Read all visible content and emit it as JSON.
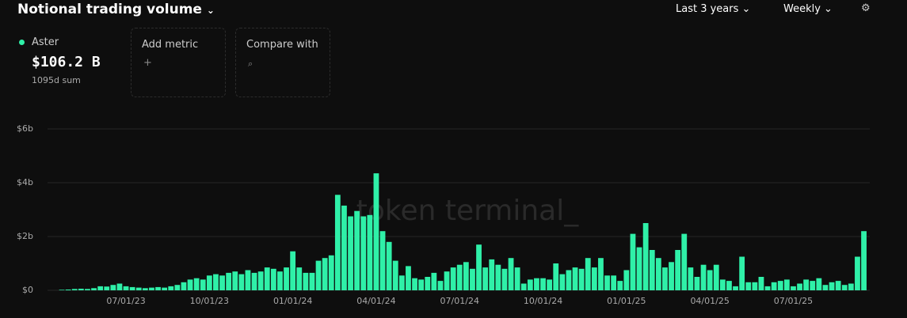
{
  "header": {
    "title": "Notional trading volume",
    "range": "Last 3 years",
    "interval": "Weekly"
  },
  "summary": {
    "name": "Aster",
    "total": "$106.2 B",
    "note": "1095d sum"
  },
  "add_metric": {
    "label": "Add metric",
    "icon": "+"
  },
  "compare": {
    "label": "Compare with"
  },
  "watermark": "token terminal_",
  "chart_data": {
    "type": "bar",
    "color": "#2ff0a8",
    "grid": true,
    "ylim": [
      0,
      6
    ],
    "yticks": [
      {
        "value": 0,
        "label": "$0"
      },
      {
        "value": 2,
        "label": "$2b"
      },
      {
        "value": 4,
        "label": "$4b"
      },
      {
        "value": 6,
        "label": "$6b"
      }
    ],
    "categories": [
      null,
      null,
      null,
      null,
      null,
      null,
      null,
      null,
      null,
      null,
      "07/01/23",
      null,
      null,
      null,
      null,
      null,
      null,
      null,
      null,
      null,
      null,
      null,
      null,
      "10/01/23",
      null,
      null,
      null,
      null,
      null,
      null,
      null,
      null,
      null,
      null,
      null,
      null,
      "01/01/24",
      null,
      null,
      null,
      null,
      null,
      null,
      null,
      null,
      null,
      null,
      null,
      null,
      "04/01/24",
      null,
      null,
      null,
      null,
      null,
      null,
      null,
      null,
      null,
      null,
      null,
      null,
      "07/01/24",
      null,
      null,
      null,
      null,
      null,
      null,
      null,
      null,
      null,
      null,
      null,
      null,
      "10/01/24",
      null,
      null,
      null,
      null,
      null,
      null,
      null,
      null,
      null,
      null,
      null,
      null,
      "01/01/25",
      null,
      null,
      null,
      null,
      null,
      null,
      null,
      null,
      null,
      null,
      null,
      null,
      "04/01/25",
      null,
      null,
      null,
      null,
      null,
      null,
      null,
      null,
      null,
      null,
      null,
      null,
      "07/01/25",
      null,
      null,
      null,
      null,
      null,
      null,
      null,
      null,
      null,
      null,
      null
    ],
    "series": [
      {
        "name": "Aster",
        "color": "#2ff0a8",
        "values": [
          0.02,
          0.03,
          0.05,
          0.06,
          0.05,
          0.08,
          0.15,
          0.14,
          0.2,
          0.25,
          0.15,
          0.12,
          0.1,
          0.08,
          0.1,
          0.12,
          0.1,
          0.15,
          0.2,
          0.3,
          0.4,
          0.45,
          0.4,
          0.55,
          0.6,
          0.55,
          0.65,
          0.7,
          0.6,
          0.75,
          0.65,
          0.7,
          0.85,
          0.8,
          0.7,
          0.85,
          1.45,
          0.85,
          0.65,
          0.65,
          1.1,
          1.2,
          1.3,
          3.55,
          3.15,
          2.75,
          2.95,
          2.75,
          2.8,
          4.35,
          2.2,
          1.8,
          1.1,
          0.55,
          0.9,
          0.45,
          0.4,
          0.5,
          0.65,
          0.35,
          0.7,
          0.85,
          0.95,
          1.05,
          0.8,
          1.7,
          0.85,
          1.15,
          0.95,
          0.8,
          1.2,
          0.85,
          0.25,
          0.4,
          0.45,
          0.45,
          0.4,
          1.0,
          0.6,
          0.75,
          0.85,
          0.8,
          1.2,
          0.85,
          1.2,
          0.55,
          0.55,
          0.35,
          0.75,
          2.1,
          1.6,
          2.5,
          1.5,
          1.2,
          0.85,
          1.05,
          1.5,
          2.1,
          0.85,
          0.5,
          0.95,
          0.75,
          0.95,
          0.4,
          0.35,
          0.15,
          1.25,
          0.3,
          0.3,
          0.5,
          0.15,
          0.3,
          0.35,
          0.4,
          0.15,
          0.25,
          0.4,
          0.35,
          0.45,
          0.2,
          0.3,
          0.35,
          0.2,
          0.25,
          1.25,
          2.2
        ]
      }
    ]
  }
}
